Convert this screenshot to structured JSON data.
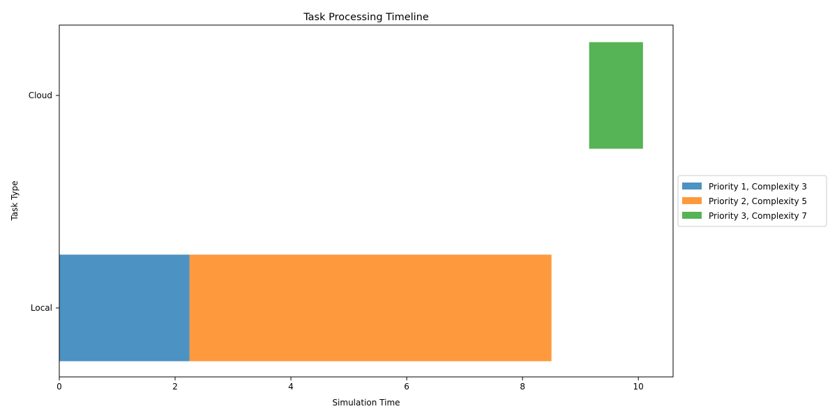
{
  "chart_data": {
    "type": "bar",
    "orientation": "horizontal",
    "title": "Task Processing Timeline",
    "xlabel": "Simulation Time",
    "ylabel": "Task Type",
    "xlim": [
      0,
      10.6
    ],
    "xticks": [
      0,
      2,
      4,
      6,
      8,
      10
    ],
    "categories": [
      "Local",
      "Cloud"
    ],
    "grid": false,
    "legend_position": "right",
    "series": [
      {
        "name": "Priority 1, Complexity 3",
        "color": "#1f77b4",
        "category": "Local",
        "start": 0,
        "end": 2.25
      },
      {
        "name": "Priority 2, Complexity 5",
        "color": "#ff7f0e",
        "category": "Local",
        "start": 2.25,
        "end": 8.5
      },
      {
        "name": "Priority 3, Complexity 7",
        "color": "#2ca02c",
        "category": "Cloud",
        "start": 9.15,
        "end": 10.08
      }
    ]
  }
}
